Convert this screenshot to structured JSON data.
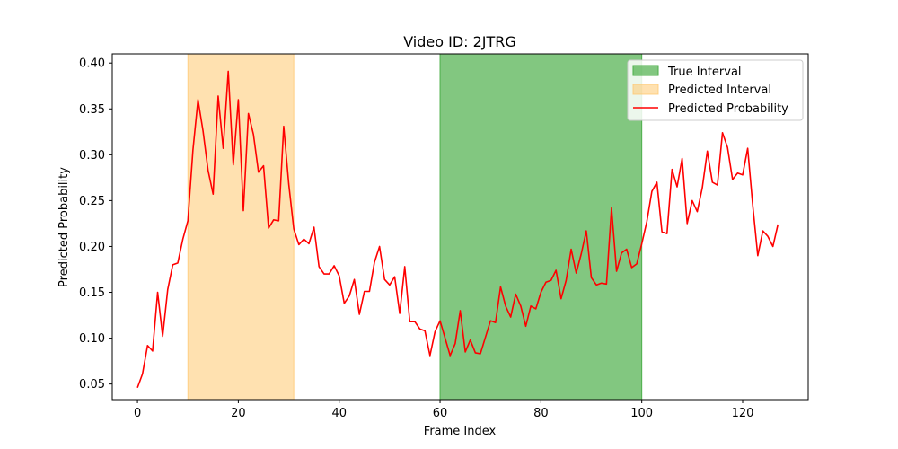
{
  "chart_data": {
    "type": "line",
    "title": "Video ID: 2JTRG",
    "xlabel": "Frame Index",
    "ylabel": "Predicted Probability",
    "xlim": [
      -5,
      133
    ],
    "ylim": [
      0.033,
      0.41
    ],
    "xticks": [
      0,
      20,
      40,
      60,
      80,
      100,
      120
    ],
    "yticks": [
      0.05,
      0.1,
      0.15,
      0.2,
      0.25,
      0.3,
      0.35,
      0.4
    ],
    "grid": false,
    "legend_placement": "top-right",
    "true_interval": {
      "name": "True Interval",
      "start": 60,
      "end": 100,
      "color": "#4daf4a"
    },
    "predicted_interval": {
      "name": "Predicted Interval",
      "start": 10,
      "end": 31,
      "color": "#ffc870"
    },
    "series": [
      {
        "name": "Predicted Probability",
        "color": "#ff0000",
        "x": [
          0,
          1,
          2,
          3,
          4,
          5,
          6,
          7,
          8,
          9,
          10,
          11,
          12,
          13,
          14,
          15,
          16,
          17,
          18,
          19,
          20,
          21,
          22,
          23,
          24,
          25,
          26,
          27,
          28,
          29,
          30,
          31,
          32,
          33,
          34,
          35,
          36,
          37,
          38,
          39,
          40,
          41,
          42,
          43,
          44,
          45,
          46,
          47,
          48,
          49,
          50,
          51,
          52,
          53,
          54,
          55,
          56,
          57,
          58,
          59,
          60,
          61,
          62,
          63,
          64,
          65,
          66,
          67,
          68,
          69,
          70,
          71,
          72,
          73,
          74,
          75,
          76,
          77,
          78,
          79,
          80,
          81,
          82,
          83,
          84,
          85,
          86,
          87,
          88,
          89,
          90,
          91,
          92,
          93,
          94,
          95,
          96,
          97,
          98,
          99,
          100,
          101,
          102,
          103,
          104,
          105,
          106,
          107,
          108,
          109,
          110,
          111,
          112,
          113,
          114,
          115,
          116,
          117,
          118,
          119,
          120,
          121,
          122,
          123,
          124,
          125,
          126,
          127
        ],
        "values": [
          0.046,
          0.061,
          0.092,
          0.086,
          0.15,
          0.102,
          0.153,
          0.18,
          0.182,
          0.208,
          0.228,
          0.305,
          0.36,
          0.326,
          0.283,
          0.257,
          0.364,
          0.307,
          0.391,
          0.289,
          0.36,
          0.239,
          0.345,
          0.322,
          0.281,
          0.288,
          0.22,
          0.229,
          0.228,
          0.331,
          0.268,
          0.219,
          0.202,
          0.208,
          0.203,
          0.221,
          0.178,
          0.17,
          0.17,
          0.179,
          0.168,
          0.138,
          0.146,
          0.164,
          0.126,
          0.151,
          0.151,
          0.183,
          0.2,
          0.164,
          0.158,
          0.167,
          0.127,
          0.178,
          0.118,
          0.118,
          0.11,
          0.108,
          0.081,
          0.107,
          0.119,
          0.1,
          0.081,
          0.094,
          0.13,
          0.085,
          0.098,
          0.084,
          0.083,
          0.101,
          0.119,
          0.117,
          0.156,
          0.135,
          0.123,
          0.148,
          0.135,
          0.113,
          0.135,
          0.132,
          0.15,
          0.161,
          0.163,
          0.174,
          0.143,
          0.163,
          0.197,
          0.171,
          0.192,
          0.217,
          0.166,
          0.158,
          0.16,
          0.159,
          0.242,
          0.173,
          0.193,
          0.197,
          0.177,
          0.181,
          0.203,
          0.227,
          0.26,
          0.27,
          0.216,
          0.214,
          0.284,
          0.265,
          0.296,
          0.225,
          0.25,
          0.238,
          0.264,
          0.304,
          0.27,
          0.267,
          0.324,
          0.308,
          0.273,
          0.28,
          0.278,
          0.307,
          0.245,
          0.19,
          0.217,
          0.211,
          0.2,
          0.224
        ]
      }
    ]
  }
}
